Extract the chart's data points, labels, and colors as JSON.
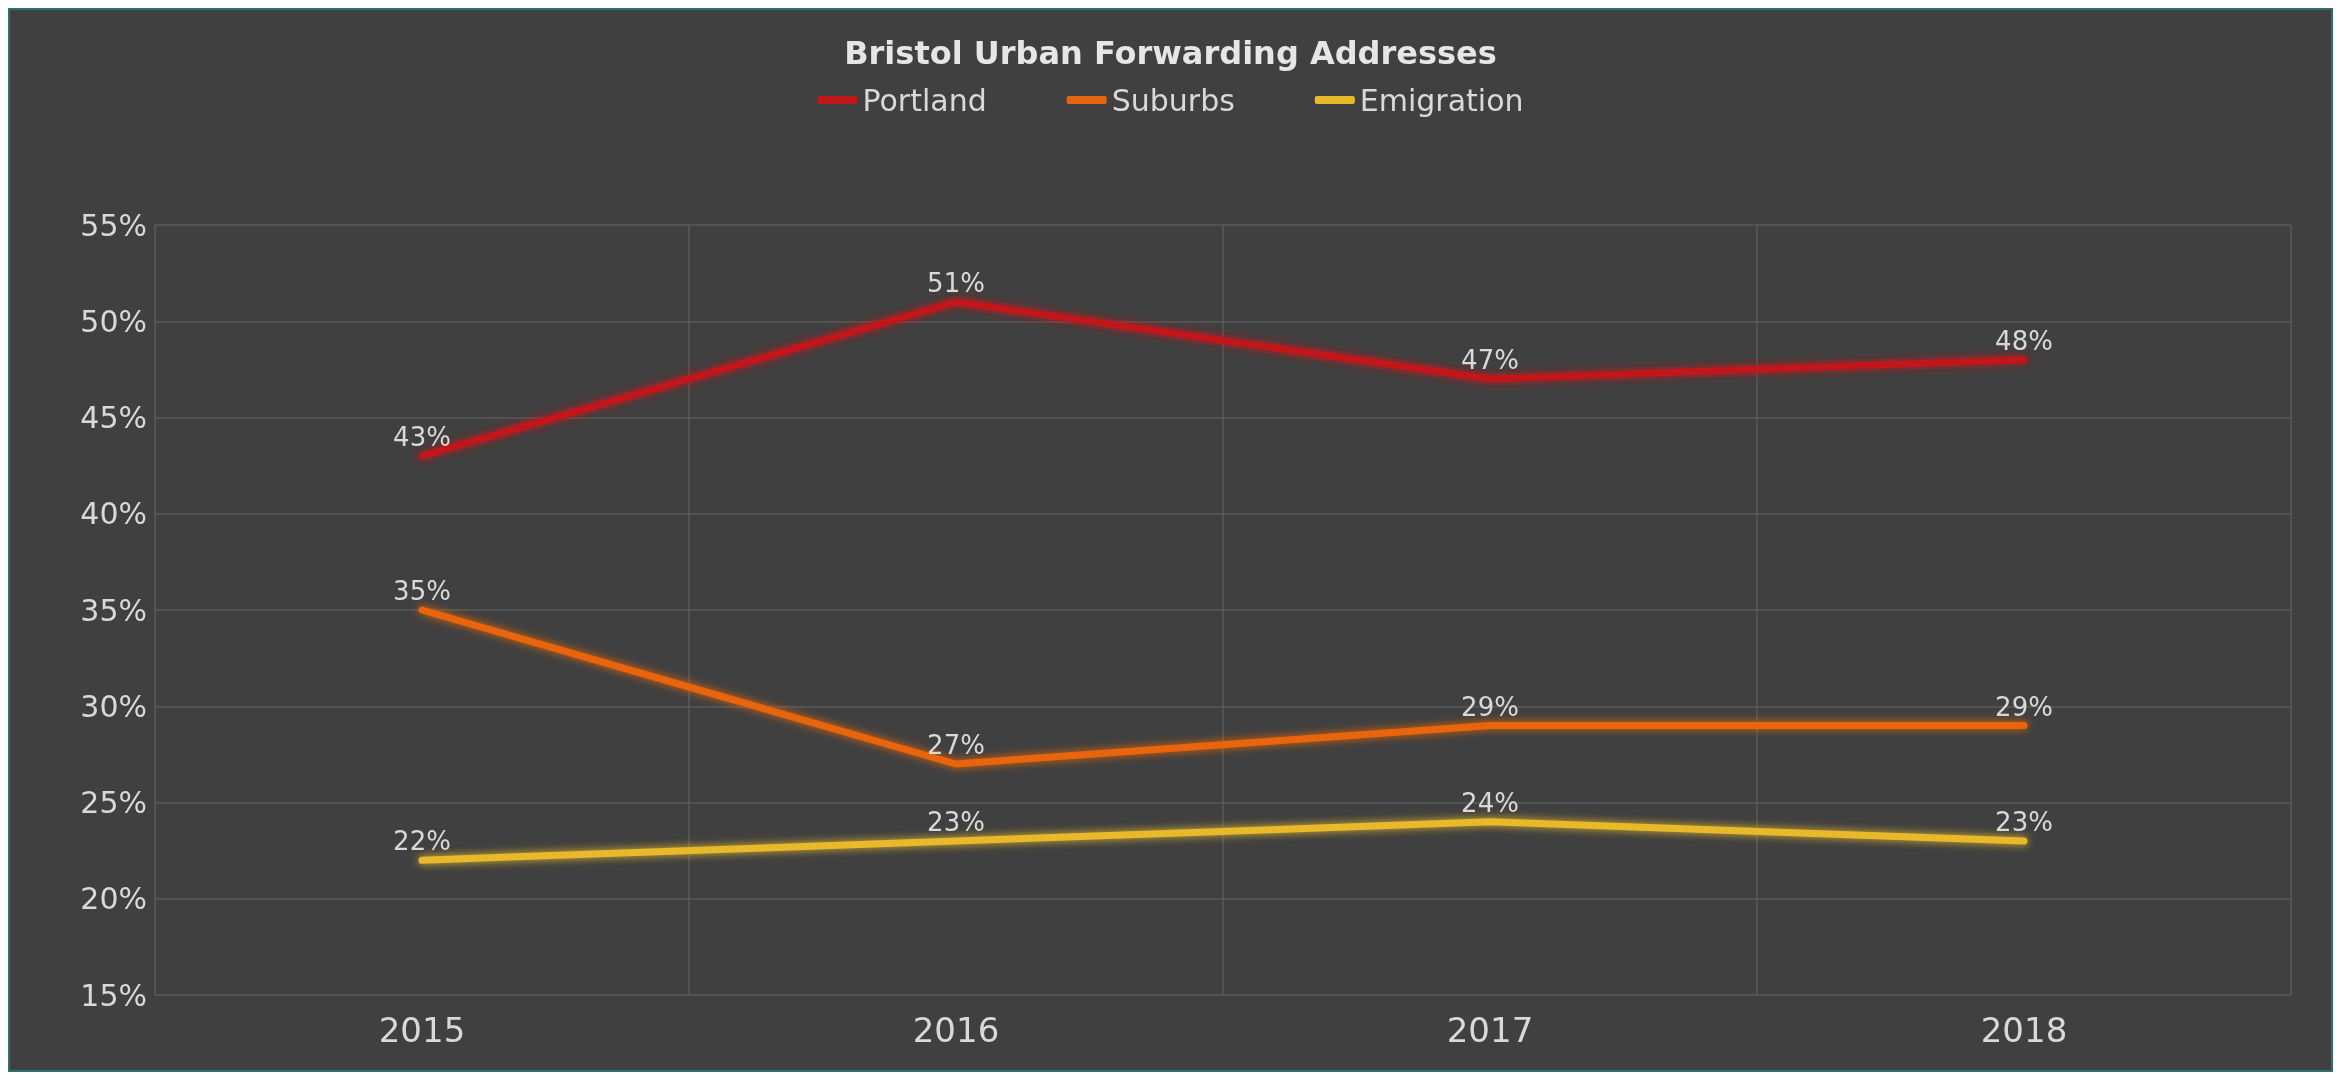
{
  "chart_data": {
    "type": "line",
    "title": "Bristol Urban Forwarding Addresses",
    "categories": [
      "2015",
      "2016",
      "2017",
      "2018"
    ],
    "series": [
      {
        "name": "Portland",
        "color": "#c0161a",
        "values": [
          43,
          51,
          47,
          48
        ],
        "value_labels": [
          "43%",
          "51%",
          "47%",
          "48%"
        ]
      },
      {
        "name": "Suburbs",
        "color": "#e8650f",
        "values": [
          35,
          27,
          29,
          29
        ],
        "value_labels": [
          "35%",
          "27%",
          "29%",
          "29%"
        ]
      },
      {
        "name": "Emigration",
        "color": "#e8b92a",
        "values": [
          22,
          23,
          24,
          23
        ],
        "value_labels": [
          "22%",
          "23%",
          "24%",
          "23%"
        ]
      }
    ],
    "ylim": [
      15,
      55
    ],
    "yticks": [
      {
        "value": 15,
        "label": "15%"
      },
      {
        "value": 20,
        "label": "20%"
      },
      {
        "value": 25,
        "label": "25%"
      },
      {
        "value": 30,
        "label": "30%"
      },
      {
        "value": 35,
        "label": "35%"
      },
      {
        "value": 40,
        "label": "40%"
      },
      {
        "value": 45,
        "label": "45%"
      },
      {
        "value": 50,
        "label": "50%"
      },
      {
        "value": 55,
        "label": "55%"
      }
    ],
    "grid": true,
    "legend": "top",
    "marker": "none",
    "line_style": "solid"
  }
}
